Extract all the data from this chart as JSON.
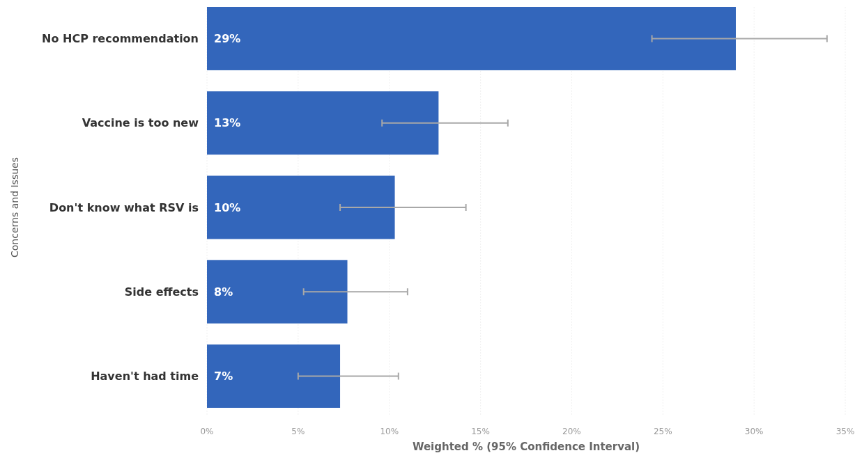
{
  "chart_data": {
    "type": "bar",
    "orientation": "horizontal",
    "xlabel": "Weighted % (95% Confidence Interval)",
    "ylabel": "Concerns and Issues",
    "categories": [
      "No HCP recommendation",
      "Vaccine is too new",
      "Don't know what RSV is",
      "Side effects",
      "Haven't had time"
    ],
    "values": [
      29,
      12.7,
      10.3,
      7.7,
      7.3
    ],
    "value_labels": [
      "29%",
      "13%",
      "10%",
      "8%",
      "7%"
    ],
    "errors": [
      [
        24.4,
        34.0
      ],
      [
        9.6,
        16.5
      ],
      [
        7.3,
        14.2
      ],
      [
        5.3,
        11.0
      ],
      [
        5.0,
        10.5
      ]
    ],
    "color": "#3366bb",
    "xlim": [
      0,
      35
    ],
    "xticks": [
      {
        "value": 0,
        "label": "0%"
      },
      {
        "value": 5,
        "label": "5%"
      },
      {
        "value": 10,
        "label": "10%"
      },
      {
        "value": 15,
        "label": "15%"
      },
      {
        "value": 20,
        "label": "20%"
      },
      {
        "value": 25,
        "label": "25%"
      },
      {
        "value": 30,
        "label": "30%"
      },
      {
        "value": 35,
        "label": "35%"
      }
    ],
    "grid": "x"
  }
}
